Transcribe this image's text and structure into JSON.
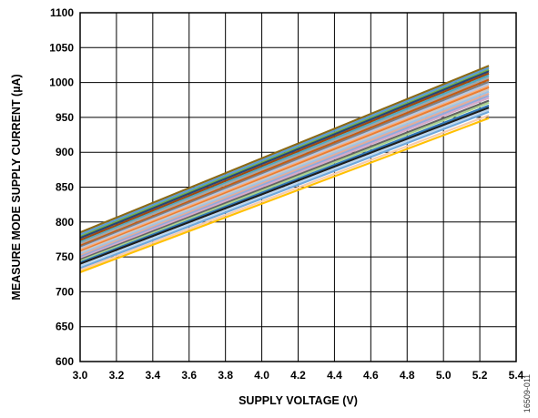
{
  "chart_data": {
    "type": "line",
    "xlabel": "SUPPLY VOLTAGE (V)",
    "ylabel": "MEASURE MODE SUPPLY CURRENT (µA)",
    "xlim": [
      3.0,
      5.4
    ],
    "ylim": [
      600,
      1100
    ],
    "x_ticks": [
      "3.0",
      "3.2",
      "3.4",
      "3.6",
      "3.8",
      "4.0",
      "4.2",
      "4.4",
      "4.6",
      "4.8",
      "5.0",
      "5.2",
      "5.4"
    ],
    "y_ticks": [
      "600",
      "650",
      "700",
      "750",
      "800",
      "850",
      "900",
      "950",
      "1000",
      "1050",
      "1100"
    ],
    "grid": true,
    "figure_id": "16509-011",
    "series": [
      {
        "color": "#8B6914",
        "values": [
          [
            3.0,
            785
          ],
          [
            5.25,
            1024
          ]
        ]
      },
      {
        "color": "#5B9BD5",
        "values": [
          [
            3.0,
            782
          ],
          [
            5.25,
            1021
          ]
        ]
      },
      {
        "color": "#70AD47",
        "values": [
          [
            3.0,
            779
          ],
          [
            5.25,
            1018
          ]
        ]
      },
      {
        "color": "#264478",
        "values": [
          [
            3.0,
            777
          ],
          [
            5.25,
            1016
          ]
        ]
      },
      {
        "color": "#9E480E",
        "values": [
          [
            3.0,
            774
          ],
          [
            5.25,
            1013
          ]
        ]
      },
      {
        "color": "#4BACC6",
        "values": [
          [
            3.0,
            771
          ],
          [
            5.25,
            1010
          ]
        ]
      },
      {
        "color": "#A5A5A5",
        "values": [
          [
            3.0,
            769
          ],
          [
            5.25,
            1007
          ]
        ]
      },
      {
        "color": "#C55A11",
        "values": [
          [
            3.0,
            766
          ],
          [
            5.25,
            1004
          ]
        ]
      },
      {
        "color": "#7F7F7F",
        "values": [
          [
            3.0,
            764
          ],
          [
            5.25,
            1001
          ]
        ]
      },
      {
        "color": "#B4C7E7",
        "values": [
          [
            3.0,
            762
          ],
          [
            5.25,
            998
          ]
        ]
      },
      {
        "color": "#F4B183",
        "values": [
          [
            3.0,
            760
          ],
          [
            5.25,
            995
          ]
        ]
      },
      {
        "color": "#ED7D31",
        "values": [
          [
            3.0,
            758
          ],
          [
            5.25,
            993
          ]
        ]
      },
      {
        "color": "#C9C9C9",
        "values": [
          [
            3.0,
            756
          ],
          [
            5.25,
            990
          ]
        ]
      },
      {
        "color": "#9DC3E6",
        "values": [
          [
            3.0,
            754
          ],
          [
            5.25,
            987
          ]
        ]
      },
      {
        "color": "#E2AC9A",
        "values": [
          [
            3.0,
            752
          ],
          [
            5.25,
            984
          ]
        ]
      },
      {
        "color": "#8FAADC",
        "values": [
          [
            3.0,
            750
          ],
          [
            5.25,
            981
          ]
        ]
      },
      {
        "color": "#D6A9C9",
        "values": [
          [
            3.0,
            748
          ],
          [
            5.25,
            978
          ]
        ]
      },
      {
        "color": "#636363",
        "values": [
          [
            3.0,
            746
          ],
          [
            5.25,
            974
          ]
        ]
      },
      {
        "color": "#A9D18E",
        "values": [
          [
            3.0,
            744
          ],
          [
            5.25,
            971
          ]
        ]
      },
      {
        "color": "#2E75B6",
        "values": [
          [
            3.0,
            742
          ],
          [
            5.25,
            967
          ]
        ]
      },
      {
        "color": "#1F1F1F",
        "values": [
          [
            3.0,
            740
          ],
          [
            5.25,
            964
          ]
        ]
      },
      {
        "color": "#BDD7EE",
        "values": [
          [
            3.0,
            737
          ],
          [
            5.25,
            961
          ]
        ]
      },
      {
        "color": "#6FA8DC",
        "values": [
          [
            3.0,
            734
          ],
          [
            5.25,
            958
          ]
        ]
      },
      {
        "color": "#F8CBAD",
        "values": [
          [
            3.0,
            731
          ],
          [
            5.25,
            953
          ]
        ]
      },
      {
        "color": "#FFC000",
        "values": [
          [
            3.0,
            728
          ],
          [
            5.25,
            949
          ]
        ]
      }
    ]
  }
}
